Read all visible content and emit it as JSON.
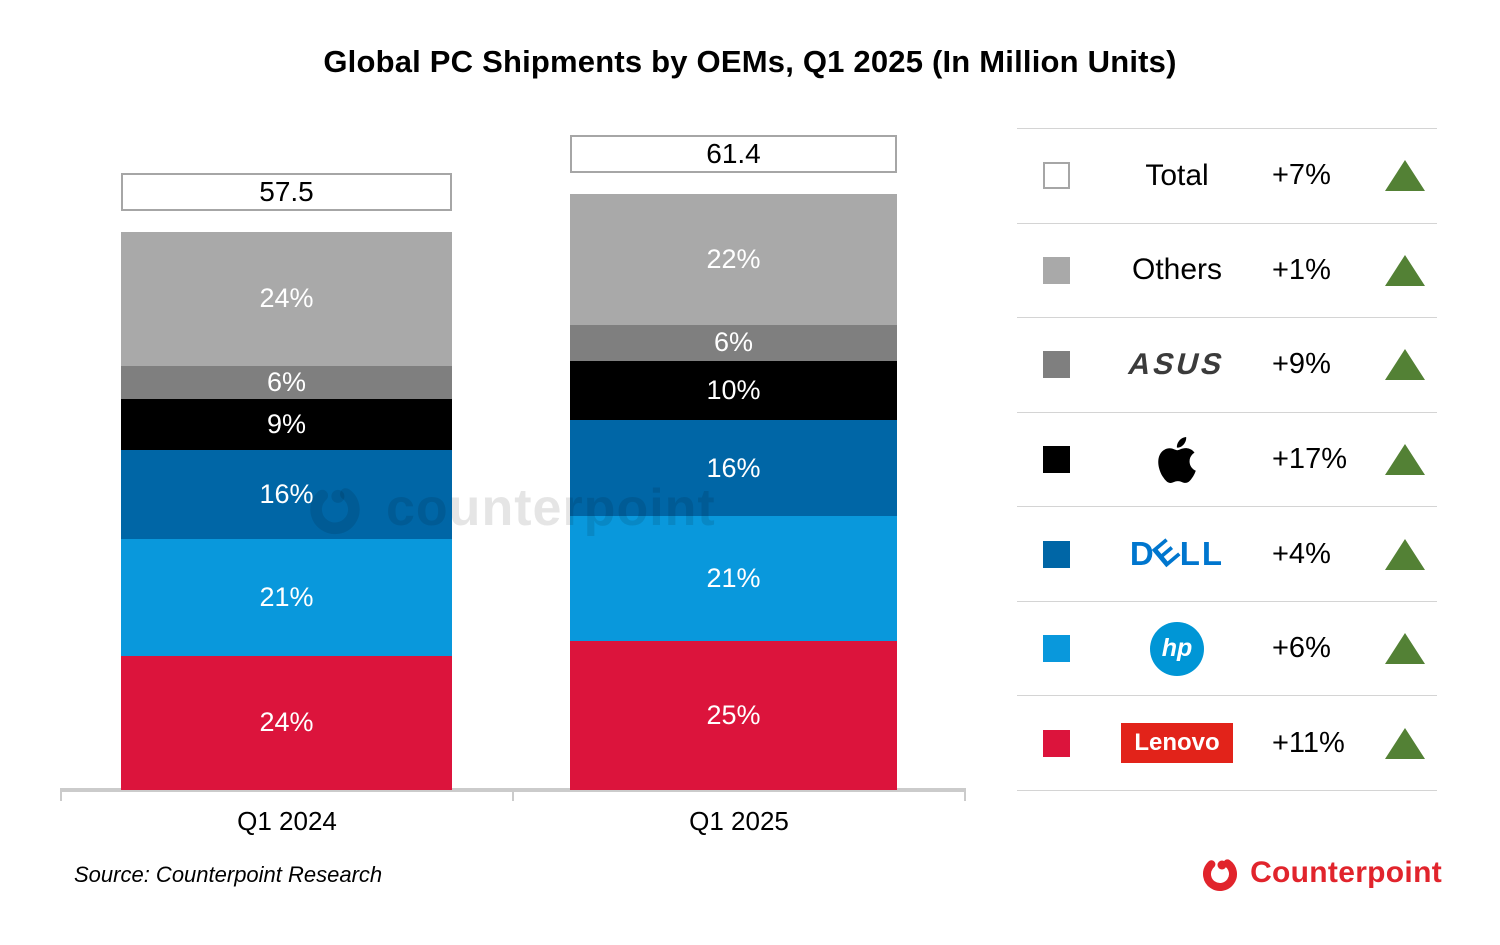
{
  "title": "Global PC Shipments by OEMs, Q1 2025 (In Million Units)",
  "source": {
    "text": "Source: Counterpoint Research"
  },
  "brand": {
    "name": "Counterpoint",
    "color": "#E1242C"
  },
  "watermark": {
    "text": "counterpoint"
  },
  "chart_data": {
    "type": "bar",
    "subtype": "stacked-100pct",
    "title": "Global PC Shipments by OEMs, Q1 2025 (In Million Units)",
    "unit": "Million Units",
    "categories": [
      "Q1 2024",
      "Q1 2025"
    ],
    "totals": [
      57.5,
      61.4
    ],
    "series": [
      {
        "name": "Lenovo",
        "color": "#DC143C",
        "values_pct": [
          24,
          25
        ]
      },
      {
        "name": "HP",
        "color": "#0998DC",
        "values_pct": [
          21,
          21
        ]
      },
      {
        "name": "Dell",
        "color": "#0066A6",
        "values_pct": [
          16,
          16
        ]
      },
      {
        "name": "Apple",
        "color": "#000000",
        "values_pct": [
          9,
          10
        ]
      },
      {
        "name": "ASUS",
        "color": "#7F7F7F",
        "values_pct": [
          6,
          6
        ]
      },
      {
        "name": "Others",
        "color": "#A9A9A9",
        "values_pct": [
          24,
          22
        ]
      }
    ],
    "value_labels_format": "percent-inside",
    "total_labels": [
      "57.5",
      "61.4"
    ],
    "legend_position": "right",
    "grid": false
  },
  "legend": {
    "trend_color": "#538135",
    "trend_direction": "up",
    "rows": [
      {
        "name": "Total",
        "display": "text",
        "change": "+7%",
        "swatch": "#FFFFFF",
        "swatch_border": "#A6A6A6"
      },
      {
        "name": "Others",
        "display": "text",
        "change": "+1%",
        "swatch": "#A9A9A9"
      },
      {
        "name": "ASUS",
        "display": "asus-logo",
        "change": "+9%",
        "swatch": "#7F7F7F",
        "logo_text": "ASUS"
      },
      {
        "name": "Apple",
        "display": "apple-logo",
        "change": "+17%",
        "swatch": "#000000"
      },
      {
        "name": "Dell",
        "display": "dell-logo",
        "change": "+4%",
        "swatch": "#0066A6",
        "logo_text": "DELL"
      },
      {
        "name": "HP",
        "display": "hp-logo",
        "change": "+6%",
        "swatch": "#0998DC",
        "logo_text": "hp"
      },
      {
        "name": "Lenovo",
        "display": "lenovo-logo",
        "change": "+11%",
        "swatch": "#DC143C",
        "logo_text": "Lenovo"
      }
    ]
  }
}
